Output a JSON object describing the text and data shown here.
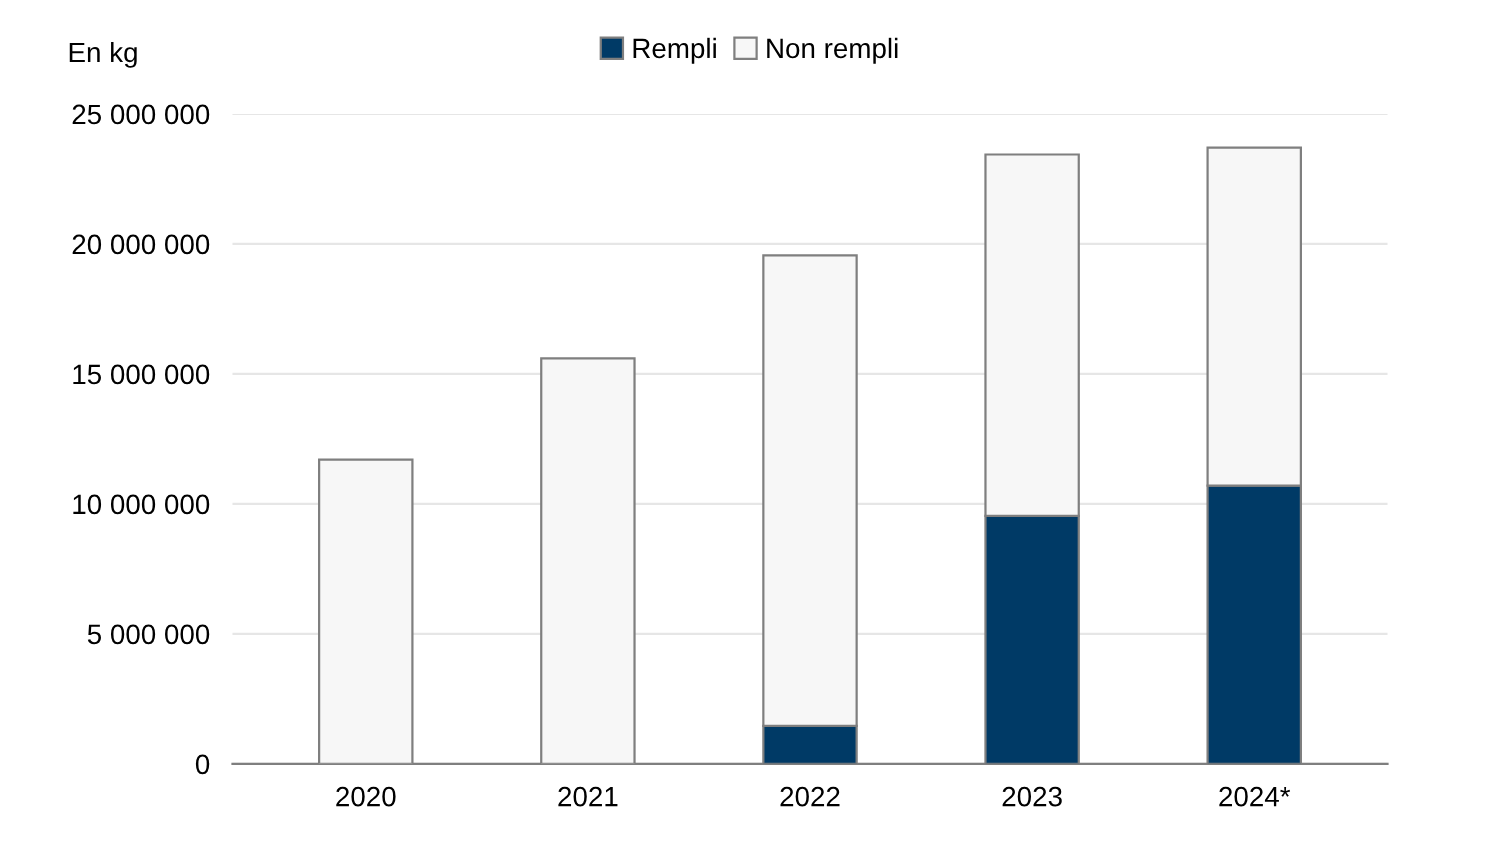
{
  "chart_data": {
    "type": "bar",
    "ylabel": "En kg",
    "categories": [
      "2020",
      "2021",
      "2022",
      "2023",
      "2024*"
    ],
    "stacked": true,
    "series": [
      {
        "name": "Rempli",
        "color": "#003a66",
        "values": [
          0,
          0,
          1460000,
          9540000,
          10700000
        ]
      },
      {
        "name": "Non rempli",
        "color": "#f7f7f7",
        "values": [
          11700000,
          15600000,
          18100000,
          13900000,
          13000000
        ]
      }
    ],
    "ylim": [
      0,
      25000000
    ],
    "yticks": [
      0,
      {
        "value": 5000000,
        "label": "5 000 000"
      },
      {
        "value": 10000000,
        "label": "10 000 000"
      },
      {
        "value": 15000000,
        "label": "15 000 000"
      },
      {
        "value": 20000000,
        "label": "20 000 000"
      },
      {
        "value": 25000000,
        "label": "25 000 000"
      }
    ],
    "grid": "y",
    "legend": "top"
  }
}
